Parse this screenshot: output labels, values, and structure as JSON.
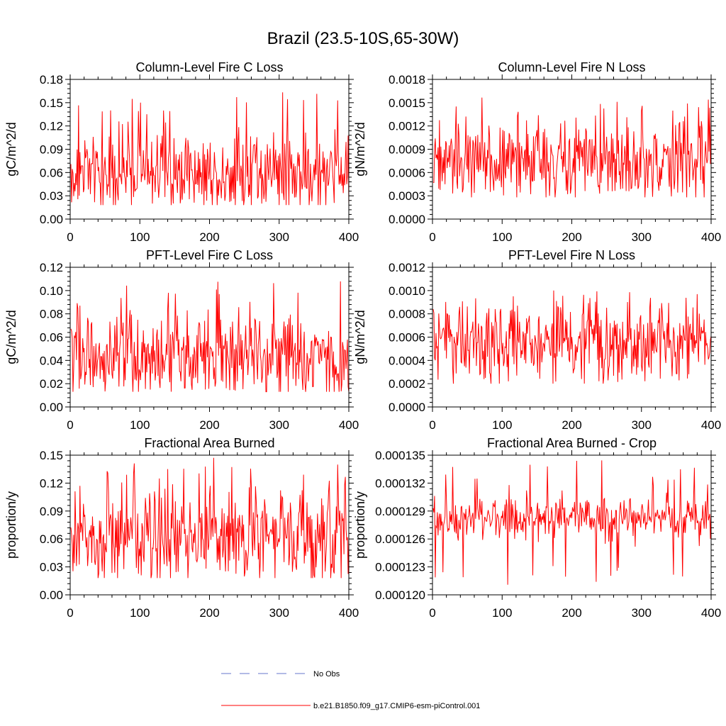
{
  "page_title": "Brazil (23.5-10S,65-30W)",
  "colors": {
    "model": "#ff0000",
    "obs": "#6677cc"
  },
  "legend": {
    "obs_label": "No Obs",
    "model_label": "b.e21.B1850.f09_g17.CMIP6-esm-piControl.001"
  },
  "chart_data": [
    {
      "type": "line",
      "title": "Column-Level Fire C Loss",
      "xlabel": "",
      "ylabel": "gC/m^2/d",
      "xlim": [
        0,
        400
      ],
      "ylim": [
        0,
        0.18
      ],
      "xticks": [
        0,
        100,
        200,
        300,
        400
      ],
      "xtick_labels": [
        "0",
        "100",
        "200",
        "300",
        "400"
      ],
      "yticks": [
        0,
        0.03,
        0.06,
        0.09,
        0.12,
        0.15,
        0.18
      ],
      "ytick_labels": [
        "0.00",
        "0.03",
        "0.06",
        "0.09",
        "0.12",
        "0.15",
        "0.18"
      ],
      "series": [
        {
          "name": "b.e21.B1850.f09_g17.CMIP6-esm-piControl.001",
          "color": "#ff0000",
          "n_points": 400,
          "mean": 0.062,
          "spread": 0.027,
          "min": 0.018,
          "max": 0.165
        }
      ]
    },
    {
      "type": "line",
      "title": "Column-Level Fire N Loss",
      "xlabel": "",
      "ylabel": "gN/m^2/d",
      "xlim": [
        0,
        400
      ],
      "ylim": [
        0,
        0.0018
      ],
      "xticks": [
        0,
        100,
        200,
        300,
        400
      ],
      "xtick_labels": [
        "0",
        "100",
        "200",
        "300",
        "400"
      ],
      "yticks": [
        0,
        0.0003,
        0.0006,
        0.0009,
        0.0012,
        0.0015,
        0.0018
      ],
      "ytick_labels": [
        "0.0000",
        "0.0003",
        "0.0006",
        "0.0009",
        "0.0012",
        "0.0015",
        "0.0018"
      ],
      "series": [
        {
          "name": "b.e21.B1850.f09_g17.CMIP6-esm-piControl.001",
          "color": "#ff0000",
          "n_points": 400,
          "mean": 0.00078,
          "spread": 0.00028,
          "min": 0.00028,
          "max": 0.00163
        }
      ]
    },
    {
      "type": "line",
      "title": "PFT-Level Fire C Loss",
      "xlabel": "",
      "ylabel": "gC/m^2/d",
      "xlim": [
        0,
        400
      ],
      "ylim": [
        0,
        0.12
      ],
      "xticks": [
        0,
        100,
        200,
        300,
        400
      ],
      "xtick_labels": [
        "0",
        "100",
        "200",
        "300",
        "400"
      ],
      "yticks": [
        0,
        0.02,
        0.04,
        0.06,
        0.08,
        0.1,
        0.12
      ],
      "ytick_labels": [
        "0.00",
        "0.02",
        "0.04",
        "0.06",
        "0.08",
        "0.10",
        "0.12"
      ],
      "series": [
        {
          "name": "b.e21.B1850.f09_g17.CMIP6-esm-piControl.001",
          "color": "#ff0000",
          "n_points": 400,
          "mean": 0.044,
          "spread": 0.018,
          "min": 0.013,
          "max": 0.108
        }
      ]
    },
    {
      "type": "line",
      "title": "PFT-Level Fire N Loss",
      "xlabel": "",
      "ylabel": "gN/m^2/d",
      "xlim": [
        0,
        400
      ],
      "ylim": [
        0,
        0.0012
      ],
      "xticks": [
        0,
        100,
        200,
        300,
        400
      ],
      "xtick_labels": [
        "0",
        "100",
        "200",
        "300",
        "400"
      ],
      "yticks": [
        0,
        0.0002,
        0.0004,
        0.0006,
        0.0008,
        0.001,
        0.0012
      ],
      "ytick_labels": [
        "0.0000",
        "0.0002",
        "0.0004",
        "0.0006",
        "0.0008",
        "0.0010",
        "0.0012"
      ],
      "series": [
        {
          "name": "b.e21.B1850.f09_g17.CMIP6-esm-piControl.001",
          "color": "#ff0000",
          "n_points": 400,
          "mean": 0.00054,
          "spread": 0.00017,
          "min": 0.0002,
          "max": 0.00103
        }
      ]
    },
    {
      "type": "line",
      "title": "Fractional Area Burned",
      "xlabel": "",
      "ylabel": "proportion/y",
      "xlim": [
        0,
        400
      ],
      "ylim": [
        0,
        0.15
      ],
      "xticks": [
        0,
        100,
        200,
        300,
        400
      ],
      "xtick_labels": [
        "0",
        "100",
        "200",
        "300",
        "400"
      ],
      "yticks": [
        0,
        0.03,
        0.06,
        0.09,
        0.12,
        0.15
      ],
      "ytick_labels": [
        "0.00",
        "0.03",
        "0.06",
        "0.09",
        "0.12",
        "0.15"
      ],
      "series": [
        {
          "name": "b.e21.B1850.f09_g17.CMIP6-esm-piControl.001",
          "color": "#ff0000",
          "n_points": 400,
          "mean": 0.063,
          "spread": 0.027,
          "min": 0.018,
          "max": 0.149
        }
      ]
    },
    {
      "type": "line",
      "title": "Fractional Area Burned - Crop",
      "xlabel": "",
      "ylabel": "proportion/y",
      "xlim": [
        0,
        400
      ],
      "ylim": [
        0.00012,
        0.000135
      ],
      "xticks": [
        0,
        100,
        200,
        300,
        400
      ],
      "xtick_labels": [
        "0",
        "100",
        "200",
        "300",
        "400"
      ],
      "yticks": [
        0.00012,
        0.000123,
        0.000126,
        0.000129,
        0.000132,
        0.000135
      ],
      "ytick_labels": [
        "0.000120",
        "0.000123",
        "0.000126",
        "0.000129",
        "0.000132",
        "0.000135"
      ],
      "series": [
        {
          "name": "b.e21.B1850.f09_g17.CMIP6-esm-piControl.001",
          "color": "#ff0000",
          "n_points": 400,
          "mean": 0.0001283,
          "spread": 1.2e-06,
          "min": 0.0001205,
          "max": 0.0001345
        }
      ]
    }
  ]
}
